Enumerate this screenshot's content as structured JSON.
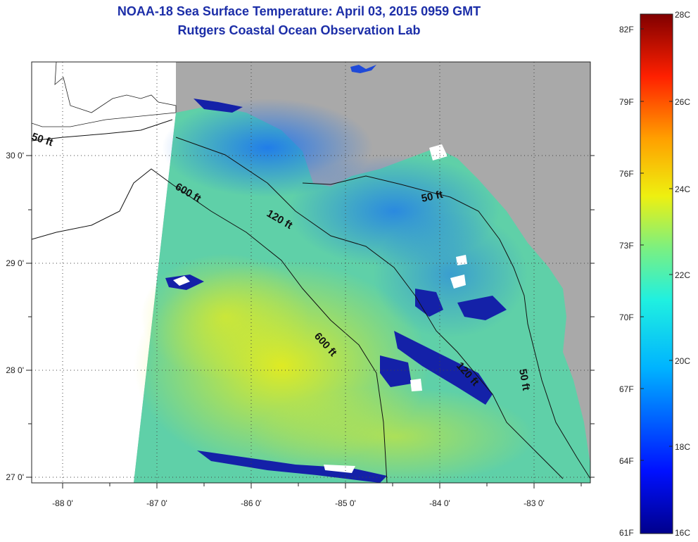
{
  "title": {
    "line1": "NOAA-18 Sea Surface Temperature:  April 03, 2015 0959 GMT",
    "line2": "Rutgers Coastal Ocean Observation Lab"
  },
  "map": {
    "longitude_ticks": [
      "-88 0'",
      "-87 0'",
      "-86 0'",
      "-85 0'",
      "-84 0'",
      "-83 0'"
    ],
    "latitude_ticks": [
      "30 0'",
      "29 0'",
      "28 0'",
      "27 0'"
    ],
    "contour_labels": [
      "50 ft",
      "600 ft",
      "120 ft",
      "50 ft",
      "600 ft",
      "120 ft",
      "50 ft"
    ],
    "colors": {
      "land": "#a9a9a9",
      "no_data": "#ffffff",
      "water_warm": "#d7ea2a",
      "water_mid": "#5fd6a2",
      "water_cool": "#1f8ef0",
      "water_cold": "#1020a0"
    }
  },
  "colorbar": {
    "fahrenheit_labels": [
      "82F",
      "79F",
      "76F",
      "73F",
      "70F",
      "67F",
      "64F",
      "61F"
    ],
    "celsius_labels": [
      "28C",
      "26C",
      "24C",
      "22C",
      "20C",
      "18C",
      "16C"
    ],
    "range_celsius": [
      16,
      28
    ],
    "range_fahrenheit": [
      61,
      82
    ]
  }
}
